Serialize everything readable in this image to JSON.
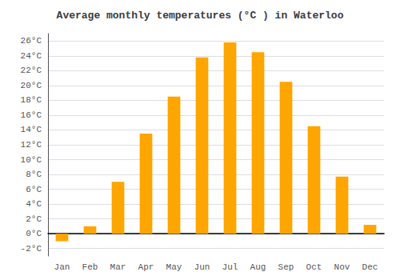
{
  "chart_data": {
    "type": "bar",
    "title": "Average monthly temperatures (°C ) in Waterloo",
    "categories": [
      "Jan",
      "Feb",
      "Mar",
      "Apr",
      "May",
      "Jun",
      "Jul",
      "Aug",
      "Sep",
      "Oct",
      "Nov",
      "Dec"
    ],
    "values": [
      -1.0,
      1.0,
      7.0,
      13.5,
      18.5,
      23.8,
      25.8,
      24.5,
      20.5,
      14.5,
      7.7,
      1.2
    ],
    "color": "#FFA500",
    "ylim": [
      -3,
      27
    ],
    "yticks": [
      {
        "value": -2,
        "label": "-2°C"
      },
      {
        "value": 0,
        "label": "0°C"
      },
      {
        "value": 2,
        "label": "2°C"
      },
      {
        "value": 4,
        "label": "4°C"
      },
      {
        "value": 6,
        "label": "6°C"
      },
      {
        "value": 8,
        "label": "8°C"
      },
      {
        "value": 10,
        "label": "10°C"
      },
      {
        "value": 12,
        "label": "12°C"
      },
      {
        "value": 14,
        "label": "14°C"
      },
      {
        "value": 16,
        "label": "16°C"
      },
      {
        "value": 18,
        "label": "18°C"
      },
      {
        "value": 20,
        "label": "20°C"
      },
      {
        "value": 22,
        "label": "22°C"
      },
      {
        "value": 24,
        "label": "24°C"
      },
      {
        "value": 26,
        "label": "26°C"
      }
    ],
    "grid": true
  }
}
